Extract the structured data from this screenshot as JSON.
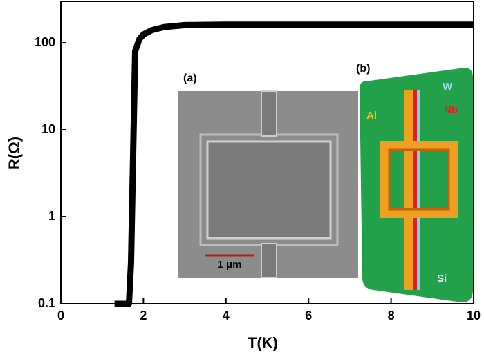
{
  "chart_data": {
    "type": "line",
    "xlabel": "T(K)",
    "ylabel": "R(Ω)",
    "x": [
      1.3,
      1.5,
      1.65,
      1.7,
      1.75,
      1.8,
      1.9,
      2.0,
      2.2,
      2.5,
      3,
      4,
      6,
      8,
      10
    ],
    "values": [
      0.1,
      0.1,
      0.1,
      0.3,
      5,
      80,
      110,
      125,
      140,
      152,
      160,
      162,
      162,
      162,
      162
    ],
    "color": "#000000",
    "xlim": [
      0,
      10
    ],
    "xticks": [
      0,
      2,
      4,
      6,
      8,
      10
    ],
    "ylim": [
      0.1,
      300
    ],
    "yticks": [
      0.1,
      1,
      10,
      100
    ],
    "yscale": "log",
    "insets": {
      "a": {
        "label": "(a)",
        "scale_bar": "1 μm"
      },
      "b": {
        "label": "(b)",
        "materials": [
          "W",
          "Nb",
          "Al",
          "Si"
        ]
      }
    }
  }
}
